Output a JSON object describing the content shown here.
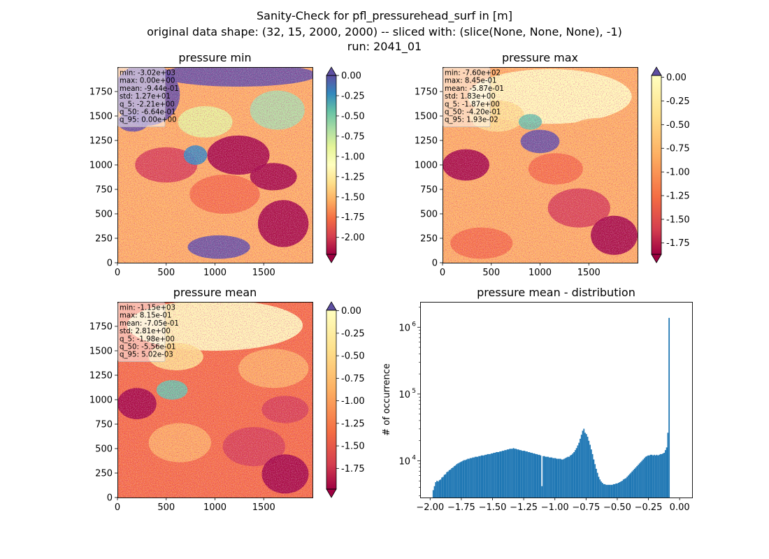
{
  "figure": {
    "suptitle": [
      "Sanity-Check for pfl_pressurehead_surf in [m]",
      "original data shape: (32, 15, 2000, 2000) -- sliced with: (slice(None, None, None), -1)",
      "run: 2041_01"
    ]
  },
  "chart_data": [
    {
      "type": "heatmap",
      "title": "pressure min",
      "xlim": [
        0,
        2000
      ],
      "ylim": [
        0,
        2000
      ],
      "xticks": [
        0,
        500,
        1000,
        1500
      ],
      "yticks": [
        0,
        250,
        500,
        750,
        1000,
        1250,
        1500,
        1750
      ],
      "colormap": "Spectral",
      "colorbar": {
        "vmin": -2.21,
        "vmax": 0.0,
        "ticks": [
          "0.00",
          "-0.25",
          "-0.50",
          "-0.75",
          "-1.00",
          "-1.25",
          "-1.50",
          "-1.75",
          "-2.00"
        ],
        "tick_values": [
          0,
          -0.25,
          -0.5,
          -0.75,
          -1.0,
          -1.25,
          -1.5,
          -1.75,
          -2.0
        ],
        "extend": "both",
        "extend_top_color": "#5e4fa2",
        "extend_bottom_color": "#9e0142"
      },
      "stats": [
        "min: -3.02e+03",
        "max: 0.00e+00",
        "mean: -9.44e-01",
        "std: 1.27e+01",
        "q_5: -2.21e+00",
        "q_50: -6.64e-01",
        "q_95: 0.00e+00"
      ],
      "legend_placement": "top-left"
    },
    {
      "type": "heatmap",
      "title": "pressure max",
      "xlim": [
        0,
        2000
      ],
      "ylim": [
        0,
        2000
      ],
      "xticks": [
        0,
        500,
        1000,
        1500
      ],
      "yticks": [
        0,
        250,
        500,
        750,
        1000,
        1250,
        1500,
        1750
      ],
      "colormap": "Spectral",
      "colorbar": {
        "vmin": -1.87,
        "vmax": 0.0193,
        "ticks": [
          "0.00",
          "-0.25",
          "-0.50",
          "-0.75",
          "-1.00",
          "-1.25",
          "-1.50",
          "-1.75"
        ],
        "tick_values": [
          0,
          -0.25,
          -0.5,
          -0.75,
          -1.0,
          -1.25,
          -1.5,
          -1.75
        ],
        "extend": "both",
        "extend_top_color": "#5e4fa2",
        "extend_bottom_color": "#9e0142"
      },
      "stats": [
        "min: -7.60e+02",
        "max: 8.45e-01",
        "mean: -5.87e-01",
        "std: 1.83e+00",
        "q_5: -1.87e+00",
        "q_50: -4.20e-01",
        "q_95: 1.93e-02"
      ],
      "legend_placement": "top-left"
    },
    {
      "type": "heatmap",
      "title": "pressure mean",
      "xlim": [
        0,
        2000
      ],
      "ylim": [
        0,
        2000
      ],
      "xticks": [
        0,
        500,
        1000,
        1500
      ],
      "yticks": [
        0,
        250,
        500,
        750,
        1000,
        1250,
        1500,
        1750
      ],
      "colormap": "Spectral",
      "colorbar": {
        "vmin": -1.98,
        "vmax": 0.00502,
        "ticks": [
          "0.00",
          "-0.25",
          "-0.50",
          "-0.75",
          "-1.00",
          "-1.25",
          "-1.50",
          "-1.75"
        ],
        "tick_values": [
          0,
          -0.25,
          -0.5,
          -0.75,
          -1.0,
          -1.25,
          -1.5,
          -1.75
        ],
        "extend": "both",
        "extend_top_color": "#5e4fa2",
        "extend_bottom_color": "#9e0142"
      },
      "stats": [
        "min: -1.15e+03",
        "max: 8.15e-01",
        "mean: -7.05e-01",
        "std: 2.81e+00",
        "q_5: -1.98e+00",
        "q_50: -5.56e-01",
        "q_95: 5.02e-03"
      ],
      "legend_placement": "top-left"
    },
    {
      "type": "bar",
      "title": "pressure mean - distribution",
      "xlabel": "",
      "ylabel": "# of occurrence",
      "xlim": [
        -2.08,
        0.1
      ],
      "ylim_log10": [
        3.45,
        6.38
      ],
      "yscale": "log",
      "xticks": [
        "−2.00",
        "−1.75",
        "−1.50",
        "−1.25",
        "−1.00",
        "−0.75",
        "−0.50",
        "−0.25",
        "0.00"
      ],
      "xtick_values": [
        -2.0,
        -1.75,
        -1.5,
        -1.25,
        -1.0,
        -0.75,
        -0.5,
        -0.25,
        0.0
      ],
      "yticks": [
        "10",
        "10",
        "10"
      ],
      "ytick_exponents": [
        "4",
        "5",
        "6"
      ],
      "ytick_log10": [
        4,
        5,
        6
      ],
      "color": "#1f77b4",
      "bins": {
        "x_start": -1.98,
        "bin_width": 0.0099,
        "log10_counts": [
          3.56,
          3.62,
          3.68,
          3.7,
          3.69,
          3.71,
          3.72,
          3.75,
          3.76,
          3.79,
          3.8,
          3.83,
          3.84,
          3.86,
          3.87,
          3.89,
          3.9,
          3.92,
          3.93,
          3.95,
          3.96,
          3.97,
          3.98,
          3.99,
          4.0,
          4.01,
          4.01,
          4.02,
          4.03,
          4.03,
          4.04,
          4.04,
          4.05,
          4.05,
          4.06,
          4.06,
          4.06,
          4.07,
          4.07,
          4.08,
          4.08,
          4.08,
          4.09,
          4.09,
          4.1,
          4.1,
          4.1,
          4.11,
          4.11,
          4.12,
          4.12,
          4.13,
          4.13,
          4.13,
          4.14,
          4.14,
          4.15,
          4.15,
          4.16,
          4.16,
          4.17,
          4.17,
          4.18,
          4.18,
          4.18,
          4.19,
          4.18,
          4.18,
          4.17,
          4.17,
          4.16,
          4.16,
          4.15,
          4.15,
          4.15,
          4.14,
          4.14,
          4.13,
          4.13,
          4.12,
          4.12,
          4.11,
          4.11,
          4.1,
          4.1,
          4.09,
          4.09,
          4.08,
          3.62,
          4.07,
          4.07,
          4.06,
          4.06,
          4.06,
          4.05,
          4.05,
          4.05,
          4.04,
          4.04,
          4.04,
          4.03,
          4.03,
          4.03,
          4.03,
          4.02,
          4.02,
          4.03,
          4.04,
          4.05,
          4.06,
          4.06,
          4.08,
          4.09,
          4.11,
          4.13,
          4.16,
          4.19,
          4.23,
          4.27,
          4.33,
          4.39,
          4.45,
          4.48,
          4.42,
          4.4,
          4.36,
          4.3,
          4.24,
          4.17,
          4.1,
          4.02,
          3.95,
          3.88,
          3.82,
          3.76,
          3.72,
          3.69,
          3.67,
          3.65,
          3.65,
          3.64,
          3.64,
          3.64,
          3.64,
          3.64,
          3.64,
          3.65,
          3.65,
          3.66,
          3.66,
          3.67,
          3.68,
          3.69,
          3.7,
          3.72,
          3.73,
          3.74,
          3.76,
          3.78,
          3.8,
          3.82,
          3.84,
          3.86,
          3.88,
          3.9,
          3.92,
          3.94,
          3.96,
          3.98,
          4.0,
          4.02,
          4.04,
          4.06,
          4.07,
          4.08,
          4.08,
          4.09,
          4.09,
          4.08,
          4.09,
          4.08,
          4.09,
          4.08,
          4.09,
          4.1,
          4.1,
          4.11,
          4.12,
          4.16,
          4.2,
          4.42,
          6.14,
          3.3,
          3.2
        ]
      }
    }
  ]
}
